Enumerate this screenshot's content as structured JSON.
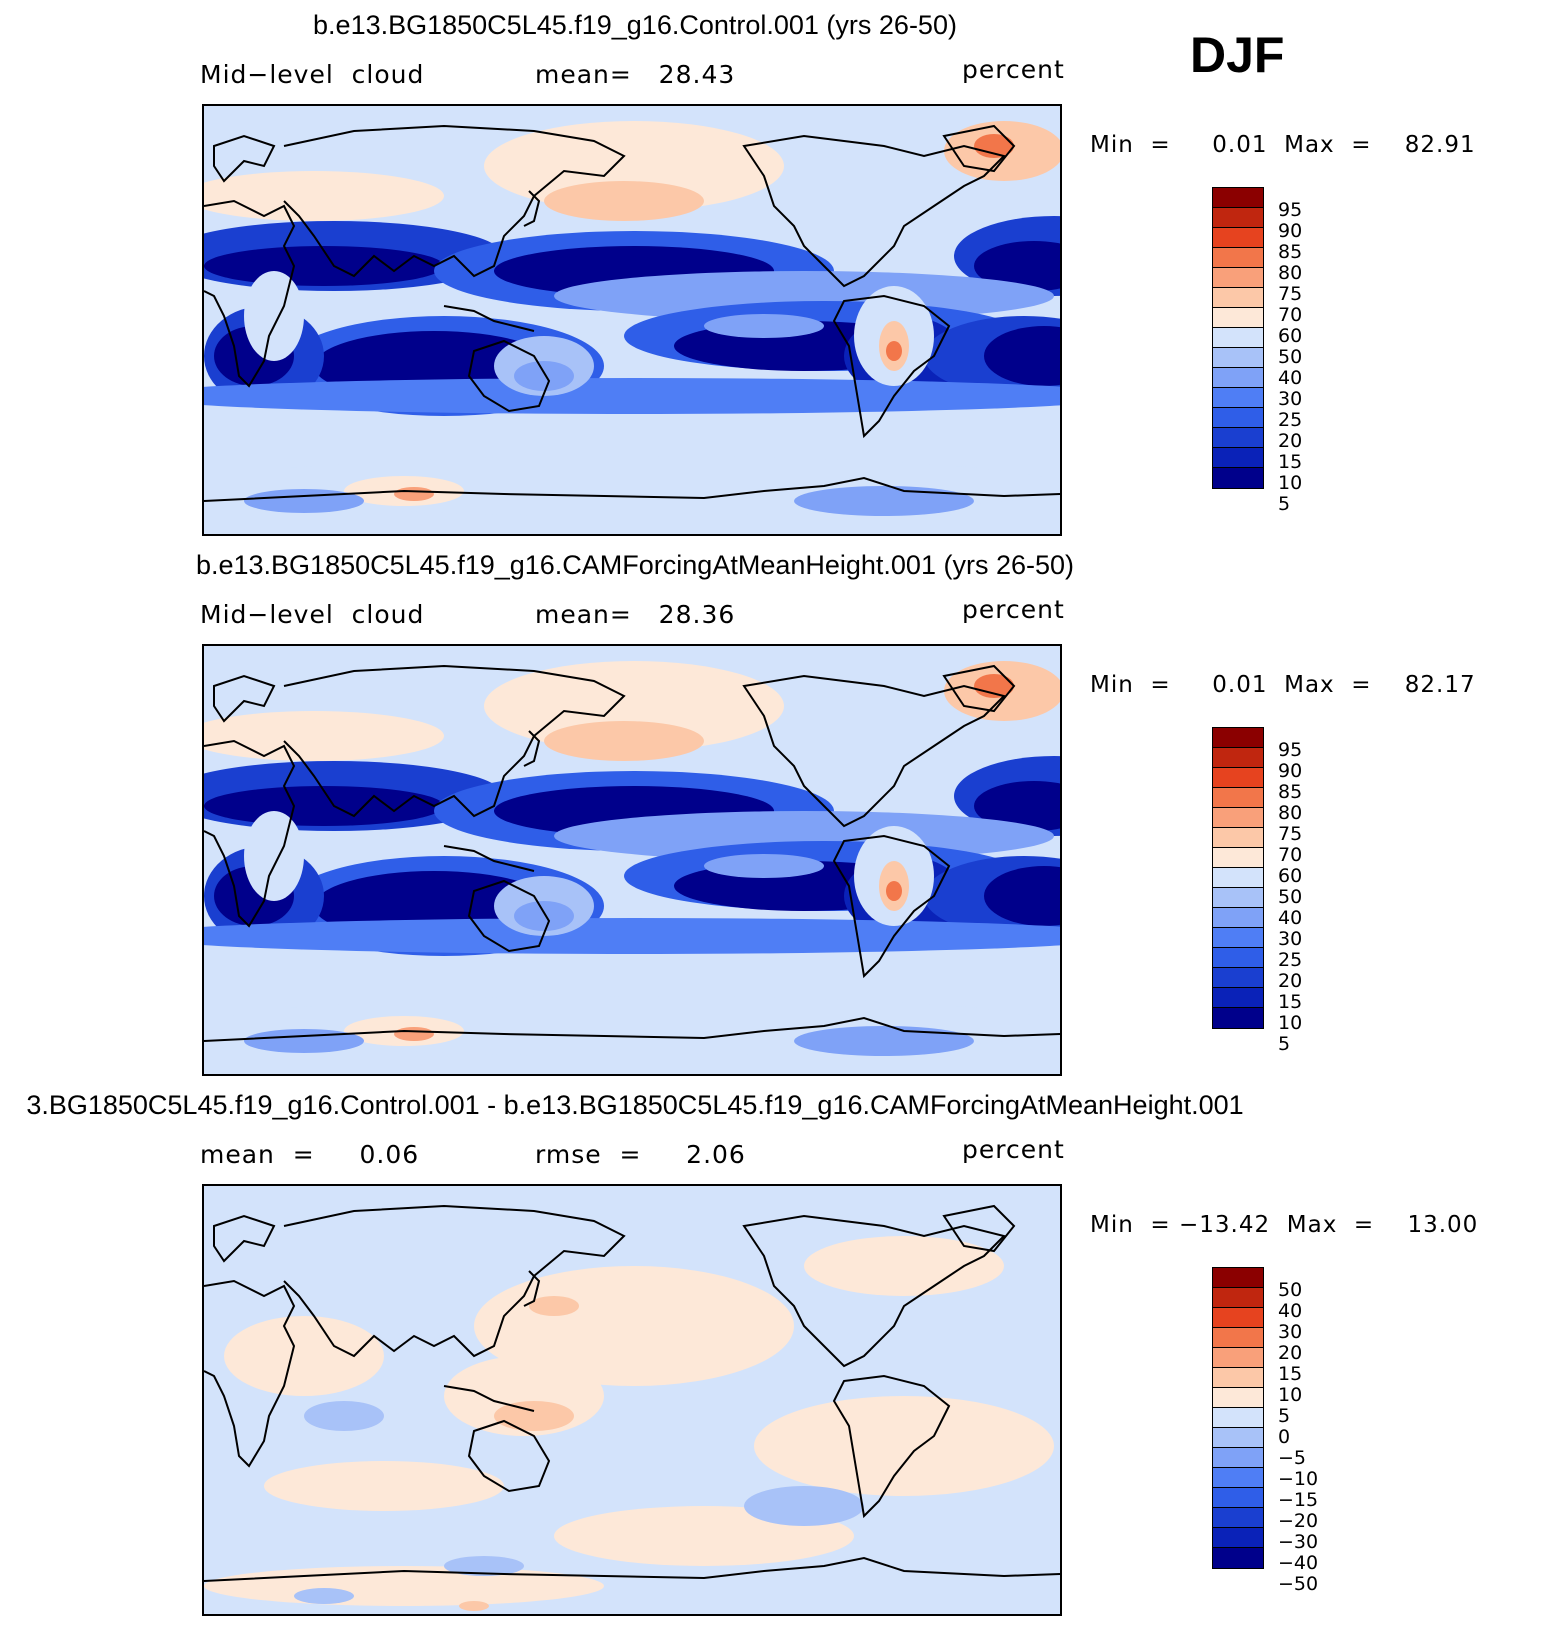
{
  "season": "DJF",
  "colors": {
    "seq": [
      "#00008b",
      "#0a22b8",
      "#1a3fd0",
      "#2f5ee8",
      "#4f7ef5",
      "#7fa2f7",
      "#a8c2f8",
      "#d3e3fb",
      "#fde8d8",
      "#fcc8a8",
      "#f9a07a",
      "#f2764a",
      "#e6431f",
      "#c0260f",
      "#8b0000"
    ],
    "land": "none",
    "coast": "#000000"
  },
  "panels": [
    {
      "title": "b.e13.BG1850C5L45.f19_g16.Control.001 (yrs 26-50)",
      "left_label": "Mid−level  cloud",
      "mid_label": "mean=   28.43",
      "units": "percent",
      "minmax": "Min  =     0.01  Max  =    82.91",
      "levels": [
        "95",
        "90",
        "85",
        "80",
        "75",
        "70",
        "60",
        "50",
        "40",
        "30",
        "25",
        "20",
        "15",
        "10",
        "5"
      ],
      "kind": "abs"
    },
    {
      "title": "b.e13.BG1850C5L45.f19_g16.CAMForcingAtMeanHeight.001 (yrs 26-50)",
      "left_label": "Mid−level  cloud",
      "mid_label": "mean=   28.36",
      "units": "percent",
      "minmax": "Min  =     0.01  Max  =    82.17",
      "levels": [
        "95",
        "90",
        "85",
        "80",
        "75",
        "70",
        "60",
        "50",
        "40",
        "30",
        "25",
        "20",
        "15",
        "10",
        "5"
      ],
      "kind": "abs"
    },
    {
      "title": "3.BG1850C5L45.f19_g16.Control.001 - b.e13.BG1850C5L45.f19_g16.CAMForcingAtMeanHeight.001",
      "left_label": "mean  =     0.06",
      "mid_label": "rmse  =     2.06",
      "units": "percent",
      "minmax": "Min  = −13.42  Max  =    13.00",
      "levels": [
        "50",
        "40",
        "30",
        "20",
        "15",
        "10",
        "5",
        "0",
        "−5",
        "−10",
        "−15",
        "−20",
        "−30",
        "−40",
        "−50"
      ],
      "kind": "diff"
    }
  ]
}
